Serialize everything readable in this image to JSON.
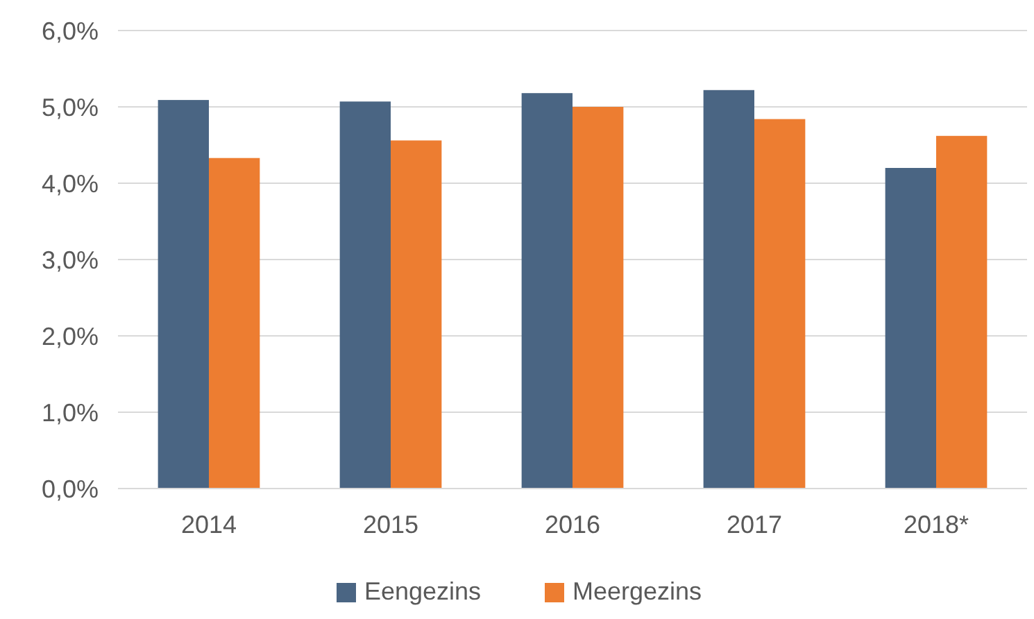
{
  "chart_data": {
    "type": "bar",
    "categories": [
      "2014",
      "2015",
      "2016",
      "2017",
      "2018*"
    ],
    "series": [
      {
        "name": "Eengezins",
        "color": "#4a6583",
        "values": [
          5.09,
          5.07,
          5.18,
          5.22,
          4.2
        ]
      },
      {
        "name": "Meergezins",
        "color": "#ed7d31",
        "values": [
          4.33,
          4.56,
          5.0,
          4.84,
          4.62
        ]
      }
    ],
    "ylim": [
      0,
      6
    ],
    "yticks": [
      {
        "value": 0,
        "label": "0,0%"
      },
      {
        "value": 1,
        "label": "1,0%"
      },
      {
        "value": 2,
        "label": "2,0%"
      },
      {
        "value": 3,
        "label": "3,0%"
      },
      {
        "value": 4,
        "label": "4,0%"
      },
      {
        "value": 5,
        "label": "5,0%"
      },
      {
        "value": 6,
        "label": "6,0%"
      }
    ],
    "grid": "y",
    "legend": "bottom"
  }
}
